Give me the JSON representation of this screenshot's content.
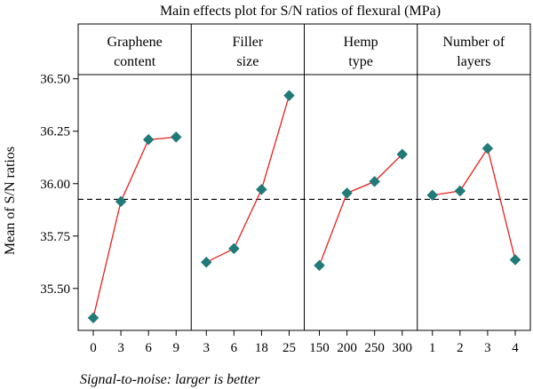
{
  "chart_data": {
    "type": "line",
    "title": "Main effects plot for S/N ratios of flexural (MPa)",
    "ylabel": "Mean of S/N ratios",
    "footnote": "Signal-to-noise: larger is better",
    "ylim": [
      35.3,
      36.52
    ],
    "yticks": [
      35.5,
      35.75,
      36.0,
      36.25,
      36.5
    ],
    "ytick_labels": [
      "35.50",
      "35.75",
      "36.00",
      "36.25",
      "36.50"
    ],
    "reference_line": 35.925,
    "marker_color": "#1f7a78",
    "line_color": "#e8201c",
    "panels": [
      {
        "header": [
          "Graphene",
          "content"
        ],
        "categories": [
          "0",
          "3",
          "6",
          "9"
        ],
        "values": [
          35.36,
          35.915,
          36.21,
          36.222
        ]
      },
      {
        "header": [
          "Filler",
          "size"
        ],
        "categories": [
          "3",
          "6",
          "18",
          "25"
        ],
        "values": [
          35.625,
          35.69,
          35.972,
          36.42
        ]
      },
      {
        "header": [
          "Hemp",
          "type"
        ],
        "categories": [
          "150",
          "200",
          "250",
          "300"
        ],
        "values": [
          35.61,
          35.955,
          36.01,
          36.14
        ]
      },
      {
        "header": [
          "Number of",
          "layers"
        ],
        "categories": [
          "1",
          "2",
          "3",
          "4"
        ],
        "values": [
          35.945,
          35.965,
          36.168,
          35.637
        ]
      }
    ]
  }
}
